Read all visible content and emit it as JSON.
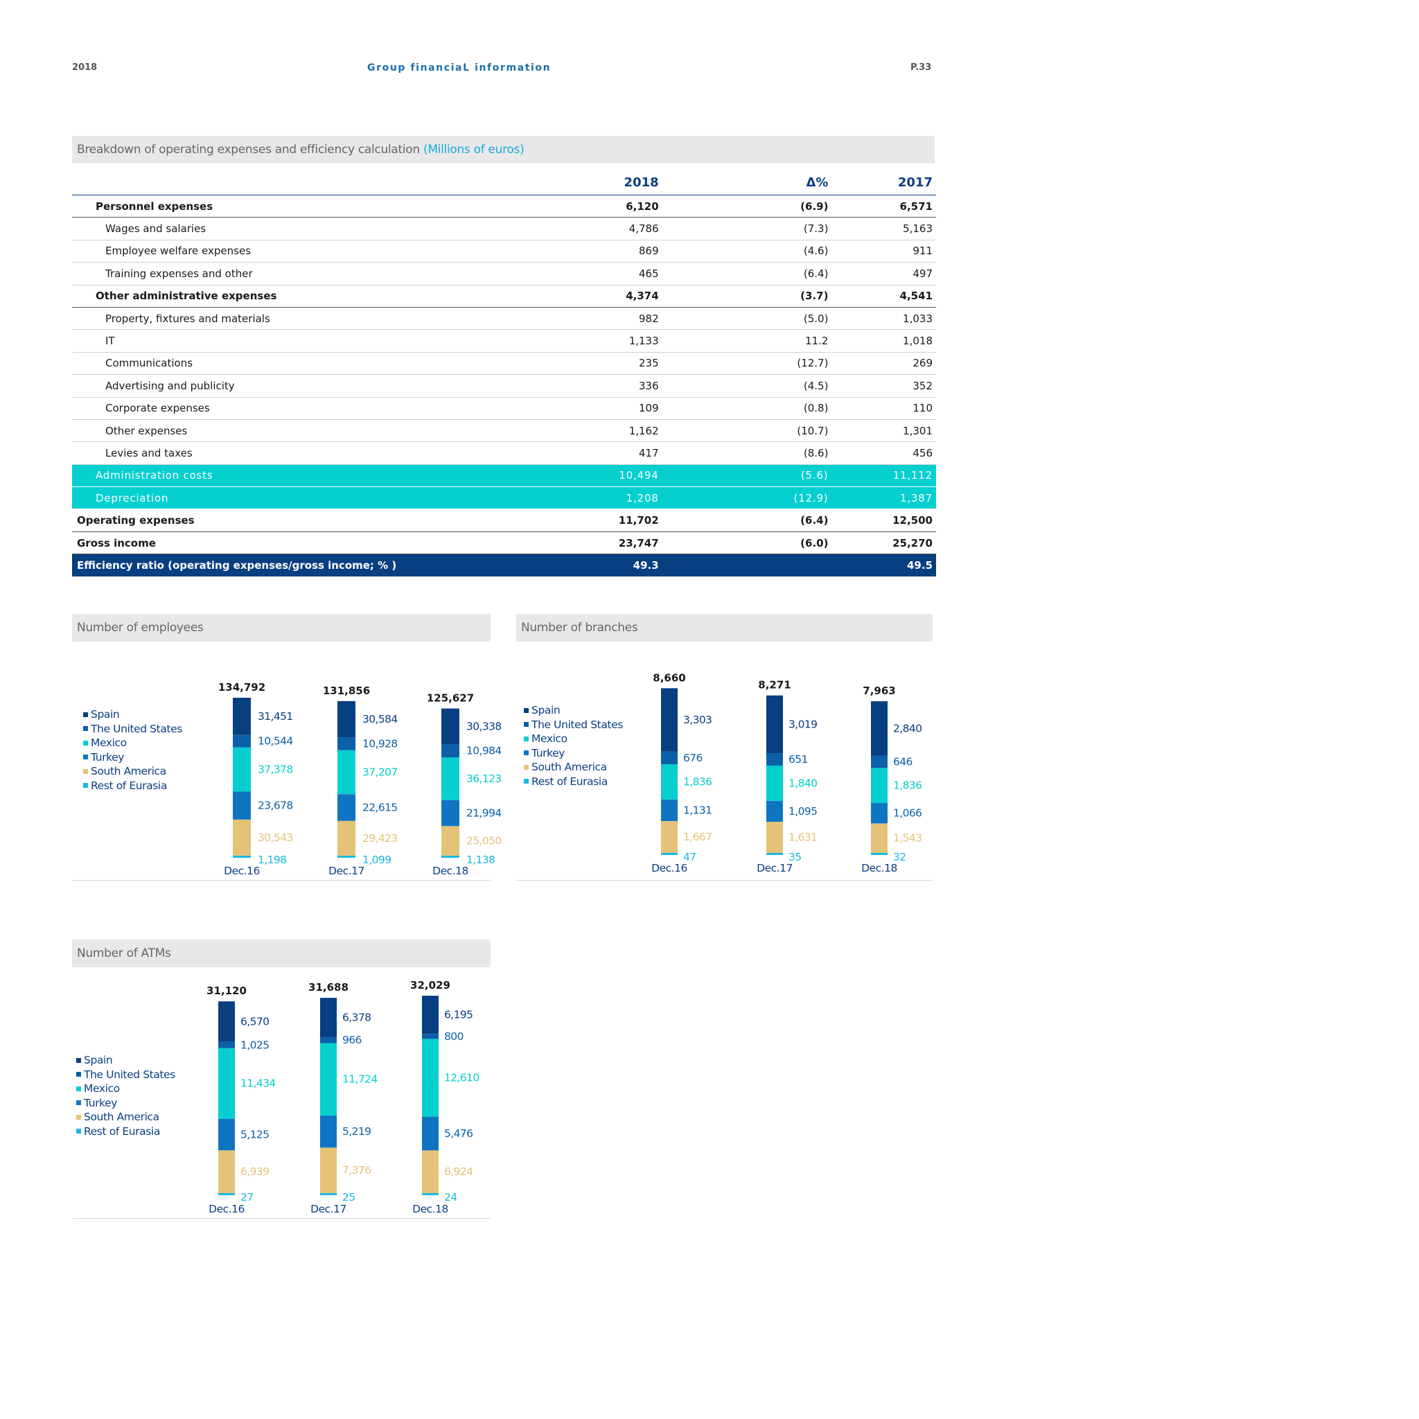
{
  "page_header": {
    "year": "2018",
    "title": "Group financiaL information",
    "page": "P.33"
  },
  "table_section": {
    "title": "Breakdown of operating expenses and efficiency calculation",
    "unit": "(Millions of euros)",
    "columns": [
      "",
      "2018",
      "Δ%",
      "2017"
    ],
    "rows": [
      {
        "label": "Personnel expenses",
        "v2018": "6,120",
        "delta": "(6.9)",
        "v2017": "6,571",
        "style": "bold",
        "indent": "l1"
      },
      {
        "label": "Wages and salaries",
        "v2018": "4,786",
        "delta": "(7.3)",
        "v2017": "5,163",
        "style": "",
        "indent": "l2"
      },
      {
        "label": "Employee welfare expenses",
        "v2018": "869",
        "delta": "(4.6)",
        "v2017": "911",
        "style": "",
        "indent": "l2"
      },
      {
        "label": "Training expenses and other",
        "v2018": "465",
        "delta": "(6.4)",
        "v2017": "497",
        "style": "",
        "indent": "l2"
      },
      {
        "label": "Other administrative expenses",
        "v2018": "4,374",
        "delta": "(3.7)",
        "v2017": "4,541",
        "style": "bold",
        "indent": "l1"
      },
      {
        "label": "Property, fixtures and materials",
        "v2018": "982",
        "delta": "(5.0)",
        "v2017": "1,033",
        "style": "",
        "indent": "l2"
      },
      {
        "label": "IT",
        "v2018": "1,133",
        "delta": "11.2",
        "v2017": "1,018",
        "style": "",
        "indent": "l2"
      },
      {
        "label": "Communications",
        "v2018": "235",
        "delta": "(12.7)",
        "v2017": "269",
        "style": "",
        "indent": "l2"
      },
      {
        "label": "Advertising and publicity",
        "v2018": "336",
        "delta": "(4.5)",
        "v2017": "352",
        "style": "",
        "indent": "l2"
      },
      {
        "label": "Corporate expenses",
        "v2018": "109",
        "delta": "(0.8)",
        "v2017": "110",
        "style": "",
        "indent": "l2"
      },
      {
        "label": "Other expenses",
        "v2018": "1,162",
        "delta": "(10.7)",
        "v2017": "1,301",
        "style": "",
        "indent": "l2"
      },
      {
        "label": "Levies and taxes",
        "v2018": "417",
        "delta": "(8.6)",
        "v2017": "456",
        "style": "",
        "indent": "l2"
      },
      {
        "label": "Administration costs",
        "v2018": "10,494",
        "delta": "(5.6)",
        "v2017": "11,112",
        "style": "teal",
        "indent": "l1"
      },
      {
        "label": "Depreciation",
        "v2018": "1,208",
        "delta": "(12.9)",
        "v2017": "1,387",
        "style": "teal",
        "indent": "l1"
      },
      {
        "label": "Operating expenses",
        "v2018": "11,702",
        "delta": "(6.4)",
        "v2017": "12,500",
        "style": "bold",
        "indent": "l0"
      },
      {
        "label": "Gross income",
        "v2018": "23,747",
        "delta": "(6.0)",
        "v2017": "25,270",
        "style": "bold",
        "indent": "l0"
      },
      {
        "label": "Efficiency ratio (operating expenses/gross income; % )",
        "v2018": "49.3",
        "delta": "",
        "v2017": "49.5",
        "style": "navy",
        "indent": "l0"
      }
    ]
  },
  "legend_labels": [
    "Spain",
    "The United States",
    "Mexico",
    "Turkey",
    "South America",
    "Rest of Eurasia"
  ],
  "colors": {
    "spain": "#073f80",
    "usa": "#0b60a8",
    "mexico": "#06cfd0",
    "turkey": "#0f75c2",
    "south_america": "#e4c378",
    "rest_eurasia": "#1ab9e3",
    "navy_text": "#0a3e80"
  },
  "charts": {
    "employees": {
      "title": "Number of employees",
      "chart_data": {
        "type": "bar",
        "stacked": true,
        "categories": [
          "Dec.16",
          "Dec.17",
          "Dec.18"
        ],
        "totals": [
          "134,792",
          "131,856",
          "125,627"
        ],
        "series": [
          {
            "name": "Spain",
            "values": [
              31451,
              30584,
              30338
            ],
            "labels": [
              "31,451",
              "30,584",
              "30,338"
            ]
          },
          {
            "name": "The United States",
            "values": [
              10544,
              10928,
              10984
            ],
            "labels": [
              "10,544",
              "10,928",
              "10,984"
            ]
          },
          {
            "name": "Mexico",
            "values": [
              37378,
              37207,
              36123
            ],
            "labels": [
              "37,378",
              "37,207",
              "36,123"
            ]
          },
          {
            "name": "Turkey",
            "values": [
              23678,
              22615,
              21994
            ],
            "labels": [
              "23,678",
              "22,615",
              "21,994"
            ]
          },
          {
            "name": "South America",
            "values": [
              30543,
              29423,
              25050
            ],
            "labels": [
              "30,543",
              "29,423",
              "25,050"
            ]
          },
          {
            "name": "Rest of Eurasia",
            "values": [
              1198,
              1099,
              1138
            ],
            "labels": [
              "1,198",
              "1,099",
              "1,138"
            ]
          }
        ]
      }
    },
    "branches": {
      "title": "Number of branches",
      "chart_data": {
        "type": "bar",
        "stacked": true,
        "categories": [
          "Dec.16",
          "Dec.17",
          "Dec.18"
        ],
        "totals": [
          "8,660",
          "8,271",
          "7,963"
        ],
        "series": [
          {
            "name": "Spain",
            "values": [
              3303,
              3019,
              2840
            ],
            "labels": [
              "3,303",
              "3,019",
              "2,840"
            ]
          },
          {
            "name": "The United States",
            "values": [
              676,
              651,
              646
            ],
            "labels": [
              "676",
              "651",
              "646"
            ]
          },
          {
            "name": "Mexico",
            "values": [
              1836,
              1840,
              1836
            ],
            "labels": [
              "1,836",
              "1,840",
              "1,836"
            ]
          },
          {
            "name": "Turkey",
            "values": [
              1131,
              1095,
              1066
            ],
            "labels": [
              "1,131",
              "1,095",
              "1,066"
            ]
          },
          {
            "name": "South America",
            "values": [
              1667,
              1631,
              1543
            ],
            "labels": [
              "1,667",
              "1,631",
              "1,543"
            ]
          },
          {
            "name": "Rest of Eurasia",
            "values": [
              47,
              35,
              32
            ],
            "labels": [
              "47",
              "35",
              "32"
            ]
          }
        ]
      }
    },
    "atms": {
      "title": "Number of ATMs",
      "chart_data": {
        "type": "bar",
        "stacked": true,
        "categories": [
          "Dec.16",
          "Dec.17",
          "Dec.18"
        ],
        "totals": [
          "31,120",
          "31,688",
          "32,029"
        ],
        "series": [
          {
            "name": "Spain",
            "values": [
              6570,
              6378,
              6195
            ],
            "labels": [
              "6,570",
              "6,378",
              "6,195"
            ]
          },
          {
            "name": "The United States",
            "values": [
              1025,
              966,
              800
            ],
            "labels": [
              "1,025",
              "966",
              "800"
            ]
          },
          {
            "name": "Mexico",
            "values": [
              11434,
              11724,
              12610
            ],
            "labels": [
              "11,434",
              "11,724",
              "12,610"
            ]
          },
          {
            "name": "Turkey",
            "values": [
              5125,
              5219,
              5476
            ],
            "labels": [
              "5,125",
              "5,219",
              "5,476"
            ]
          },
          {
            "name": "South America",
            "values": [
              6939,
              7376,
              6924
            ],
            "labels": [
              "6,939",
              "7,376",
              "6,924"
            ]
          },
          {
            "name": "Rest of Eurasia",
            "values": [
              27,
              25,
              24
            ],
            "labels": [
              "27",
              "25",
              "24"
            ]
          }
        ]
      }
    }
  }
}
